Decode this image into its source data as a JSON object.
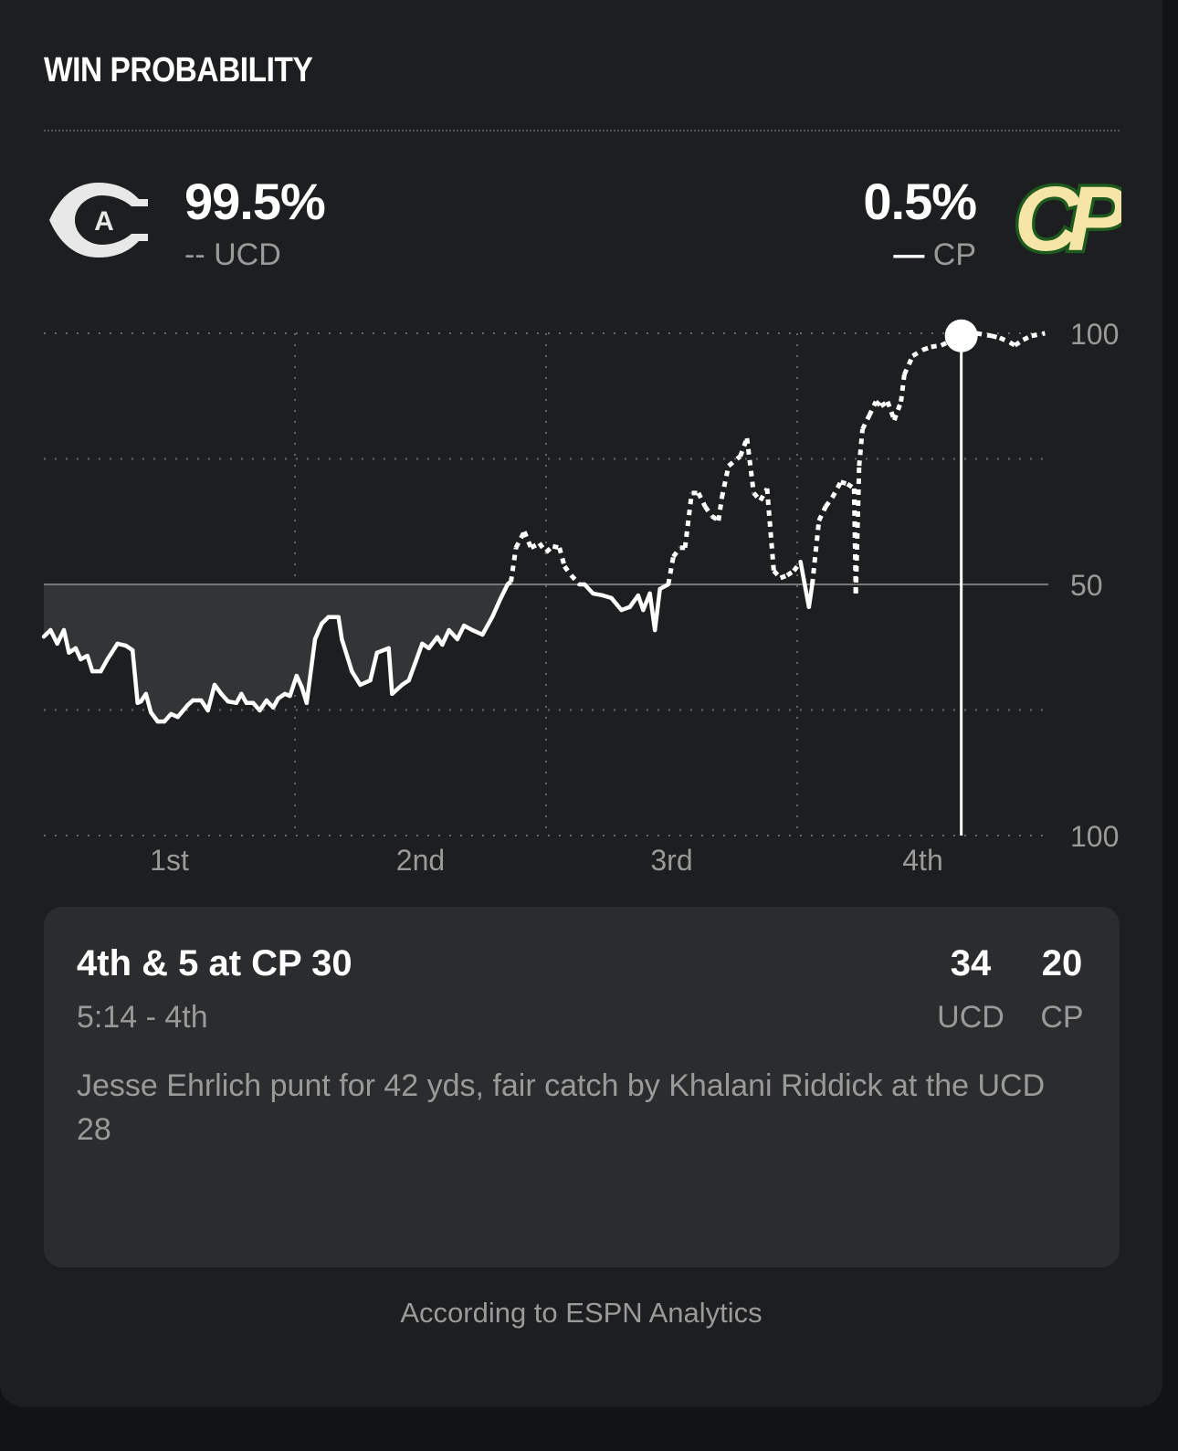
{
  "header": {
    "title": "WIN PROBABILITY"
  },
  "teams": {
    "home": {
      "pct": "99.5%",
      "legend_glyph": "--",
      "abbr": "UCD",
      "logo_letter": "A",
      "logo_color": "#e8e8e8"
    },
    "away": {
      "pct": "0.5%",
      "legend_glyph": "—",
      "abbr": "CP",
      "logo_text": "CP",
      "logo_colors": [
        "#f5e6a8",
        "#1e5a1e"
      ]
    }
  },
  "chart_data": {
    "type": "line",
    "x_unit": "game minute",
    "y_unit": "UCD win probability %",
    "xlim": [
      0,
      60
    ],
    "ylim": [
      0,
      100
    ],
    "y_tick_labels": [
      "100",
      "50",
      "100"
    ],
    "y_tick_values": [
      100,
      50,
      0
    ],
    "x_tick_labels": [
      "1st",
      "2nd",
      "3rd",
      "4th"
    ],
    "grid": true,
    "style": "dashed when UCD leads, solid when CP leads; shaded area below 50 in first half",
    "line_color": "#ffffff",
    "fill_color": "#333436",
    "selected": {
      "x": 54.8,
      "y": 99.5
    },
    "points": [
      [
        0,
        39.6
      ],
      [
        0.4,
        40.9
      ],
      [
        0.8,
        38.2
      ],
      [
        1.2,
        40.9
      ],
      [
        1.5,
        36.4
      ],
      [
        1.9,
        37.3
      ],
      [
        2.2,
        35.1
      ],
      [
        2.6,
        35.8
      ],
      [
        2.9,
        32.7
      ],
      [
        3.4,
        32.7
      ],
      [
        3.8,
        35.1
      ],
      [
        4.4,
        38.2
      ],
      [
        4.9,
        37.8
      ],
      [
        5.3,
        36.9
      ],
      [
        5.6,
        26.4
      ],
      [
        5.8,
        26.7
      ],
      [
        6.1,
        28.2
      ],
      [
        6.4,
        24.5
      ],
      [
        6.8,
        22.7
      ],
      [
        7.2,
        22.7
      ],
      [
        7.6,
        24.2
      ],
      [
        8.0,
        23.6
      ],
      [
        8.6,
        26.0
      ],
      [
        8.9,
        26.9
      ],
      [
        9.4,
        26.9
      ],
      [
        9.8,
        24.9
      ],
      [
        10.2,
        30.0
      ],
      [
        10.6,
        28.2
      ],
      [
        11.0,
        26.7
      ],
      [
        11.5,
        26.4
      ],
      [
        11.8,
        28.2
      ],
      [
        12.1,
        26.4
      ],
      [
        12.5,
        26.4
      ],
      [
        12.9,
        24.9
      ],
      [
        13.3,
        26.9
      ],
      [
        13.7,
        25.5
      ],
      [
        14.0,
        27.3
      ],
      [
        14.4,
        28.2
      ],
      [
        14.7,
        27.8
      ],
      [
        15.1,
        31.8
      ],
      [
        15.4,
        29.6
      ],
      [
        15.7,
        26.4
      ],
      [
        16.2,
        39.1
      ],
      [
        16.6,
        42.2
      ],
      [
        17.0,
        43.5
      ],
      [
        17.6,
        43.5
      ],
      [
        17.8,
        39.1
      ],
      [
        18.4,
        32.7
      ],
      [
        18.9,
        30.0
      ],
      [
        19.5,
        30.9
      ],
      [
        19.9,
        36.4
      ],
      [
        20.6,
        37.3
      ],
      [
        20.8,
        28.2
      ],
      [
        21.4,
        30.0
      ],
      [
        21.8,
        30.9
      ],
      [
        22.2,
        34.5
      ],
      [
        22.6,
        38.2
      ],
      [
        23.0,
        37.3
      ],
      [
        23.5,
        39.5
      ],
      [
        23.8,
        38.0
      ],
      [
        24.2,
        40.9
      ],
      [
        24.7,
        39.1
      ],
      [
        25.1,
        41.8
      ],
      [
        25.6,
        40.9
      ],
      [
        26.2,
        40.0
      ],
      [
        26.8,
        43.6
      ],
      [
        27.3,
        47.3
      ],
      [
        27.7,
        50.0
      ],
      [
        27.9,
        50.5
      ],
      [
        28.2,
        57.3
      ],
      [
        28.7,
        60.5
      ],
      [
        29.1,
        57.3
      ],
      [
        29.6,
        58.2
      ],
      [
        30.0,
        56.4
      ],
      [
        30.4,
        57.6
      ],
      [
        30.8,
        57.3
      ],
      [
        31.1,
        53.6
      ],
      [
        31.5,
        51.8
      ],
      [
        32.0,
        50.0
      ],
      [
        32.3,
        50.0
      ],
      [
        32.8,
        48.2
      ],
      [
        33.4,
        47.8
      ],
      [
        33.9,
        47.3
      ],
      [
        34.5,
        44.9
      ],
      [
        35.0,
        45.5
      ],
      [
        35.5,
        47.8
      ],
      [
        35.8,
        44.9
      ],
      [
        36.2,
        48.2
      ],
      [
        36.5,
        40.9
      ],
      [
        36.8,
        49.1
      ],
      [
        37.3,
        50.0
      ],
      [
        37.6,
        55.5
      ],
      [
        38.0,
        57.3
      ],
      [
        38.3,
        57.3
      ],
      [
        38.7,
        68.2
      ],
      [
        39.1,
        68.2
      ],
      [
        39.5,
        65.5
      ],
      [
        39.9,
        63.6
      ],
      [
        40.3,
        62.7
      ],
      [
        40.5,
        67.3
      ],
      [
        40.9,
        73.6
      ],
      [
        41.6,
        75.5
      ],
      [
        42.0,
        79.1
      ],
      [
        42.4,
        68.2
      ],
      [
        42.8,
        66.7
      ],
      [
        43.2,
        69.1
      ],
      [
        43.6,
        52.7
      ],
      [
        44.0,
        51.3
      ],
      [
        44.4,
        51.8
      ],
      [
        44.8,
        52.7
      ],
      [
        45.2,
        54.5
      ],
      [
        45.7,
        45.5
      ],
      [
        45.9,
        50.0
      ],
      [
        46.3,
        62.7
      ],
      [
        46.7,
        65.5
      ],
      [
        47.1,
        67.3
      ],
      [
        47.6,
        70.4
      ],
      [
        48.0,
        70.0
      ],
      [
        48.4,
        69.1
      ],
      [
        48.5,
        48.2
      ],
      [
        48.7,
        73.6
      ],
      [
        48.9,
        80.9
      ],
      [
        49.3,
        83.6
      ],
      [
        49.7,
        86.4
      ],
      [
        50.0,
        85.5
      ],
      [
        50.4,
        86.4
      ],
      [
        50.8,
        82.7
      ],
      [
        51.2,
        86.4
      ],
      [
        51.4,
        91.8
      ],
      [
        51.9,
        95.5
      ],
      [
        52.5,
        96.7
      ],
      [
        53.0,
        97.3
      ],
      [
        53.6,
        97.6
      ],
      [
        54.8,
        99.5
      ],
      [
        55.7,
        100
      ],
      [
        56.6,
        99.5
      ],
      [
        57.1,
        99.1
      ],
      [
        57.7,
        98.2
      ],
      [
        58.0,
        97.6
      ],
      [
        58.5,
        98.7
      ],
      [
        59.0,
        99.5
      ],
      [
        59.8,
        100
      ]
    ]
  },
  "play": {
    "down": "4th & 5 at CP 30",
    "clock": "5:14 - 4th",
    "home_score": "34",
    "away_score": "20",
    "home_abbr": "UCD",
    "away_abbr": "CP",
    "description": "Jesse Ehrlich punt for 42 yds, fair catch by Khalani Riddick at the UCD 28"
  },
  "footer": "According to ESPN Analytics"
}
